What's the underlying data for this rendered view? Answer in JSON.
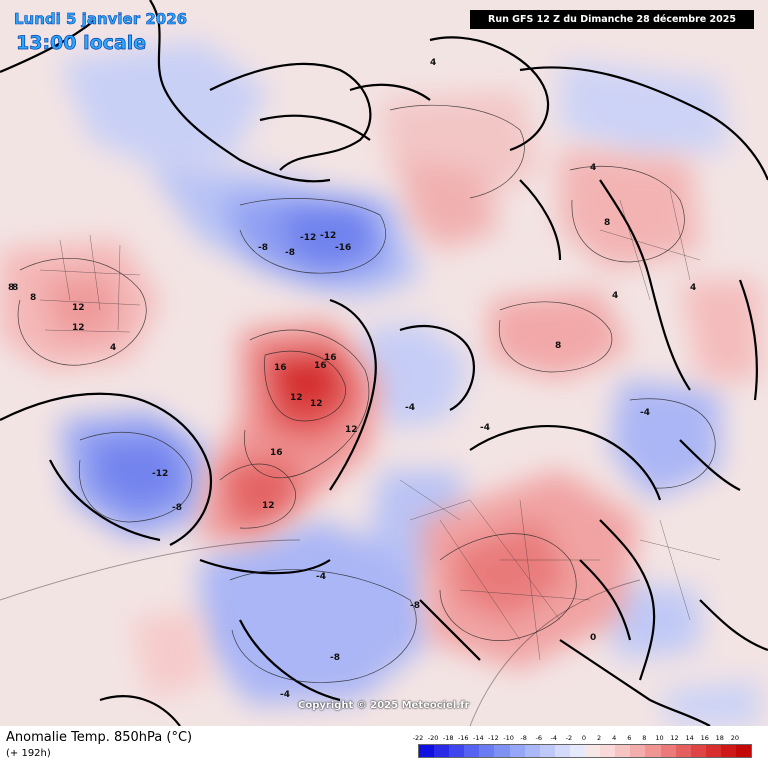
{
  "header": {
    "date_line": "Lundi 5 janvier 2026",
    "time_line": "13:00 locale",
    "run_info": "Run GFS 12 Z du Dimanche 28 décembre 2025"
  },
  "copyright": "Copyright © 2025 Meteociel.fr",
  "footer": {
    "title": "Anomalie Temp. 850hPa (°C)",
    "subtitle": "(+ 192h)"
  },
  "legend": {
    "ticks": [
      "-22",
      "-20",
      "-18",
      "-16",
      "-14",
      "-12",
      "-10",
      "-8",
      "-6",
      "-4",
      "-2",
      "0",
      "2",
      "4",
      "6",
      "8",
      "10",
      "12",
      "14",
      "16",
      "18",
      "20"
    ],
    "colors": [
      "#1010e0",
      "#2a2ae8",
      "#3f46ee",
      "#5563f0",
      "#6a7cf2",
      "#7f92f4",
      "#95a7f6",
      "#aab8f7",
      "#bfc9f9",
      "#d4daf9",
      "#e6e9fa",
      "#f7e8e8",
      "#f9d9d9",
      "#f7c4c4",
      "#f4adad",
      "#f19494",
      "#ec7a7a",
      "#e65f5f",
      "#df4545",
      "#d82e2e",
      "#cf1818",
      "#c40808"
    ]
  },
  "map": {
    "anomaly_labels": [
      {
        "text": "8"
      },
      {
        "text": "12"
      },
      {
        "text": "12"
      },
      {
        "text": "8"
      },
      {
        "text": "4"
      },
      {
        "text": "-12"
      },
      {
        "text": "-8"
      },
      {
        "text": "-16"
      },
      {
        "text": "-12"
      },
      {
        "text": "-8"
      },
      {
        "text": "16"
      },
      {
        "text": "16"
      },
      {
        "text": "16"
      },
      {
        "text": "12"
      },
      {
        "text": "12"
      },
      {
        "text": "16"
      },
      {
        "text": "12"
      },
      {
        "text": "12"
      },
      {
        "text": "-12"
      },
      {
        "text": "-8"
      },
      {
        "text": "8"
      },
      {
        "text": "8"
      },
      {
        "text": "4"
      },
      {
        "text": "4"
      },
      {
        "text": "-4"
      },
      {
        "text": "-4"
      },
      {
        "text": "-8"
      },
      {
        "text": "-4"
      },
      {
        "text": "4"
      },
      {
        "text": "8"
      },
      {
        "text": "-4"
      },
      {
        "text": "-8"
      },
      {
        "text": "0"
      },
      {
        "text": "-4"
      },
      {
        "text": "4"
      }
    ]
  }
}
